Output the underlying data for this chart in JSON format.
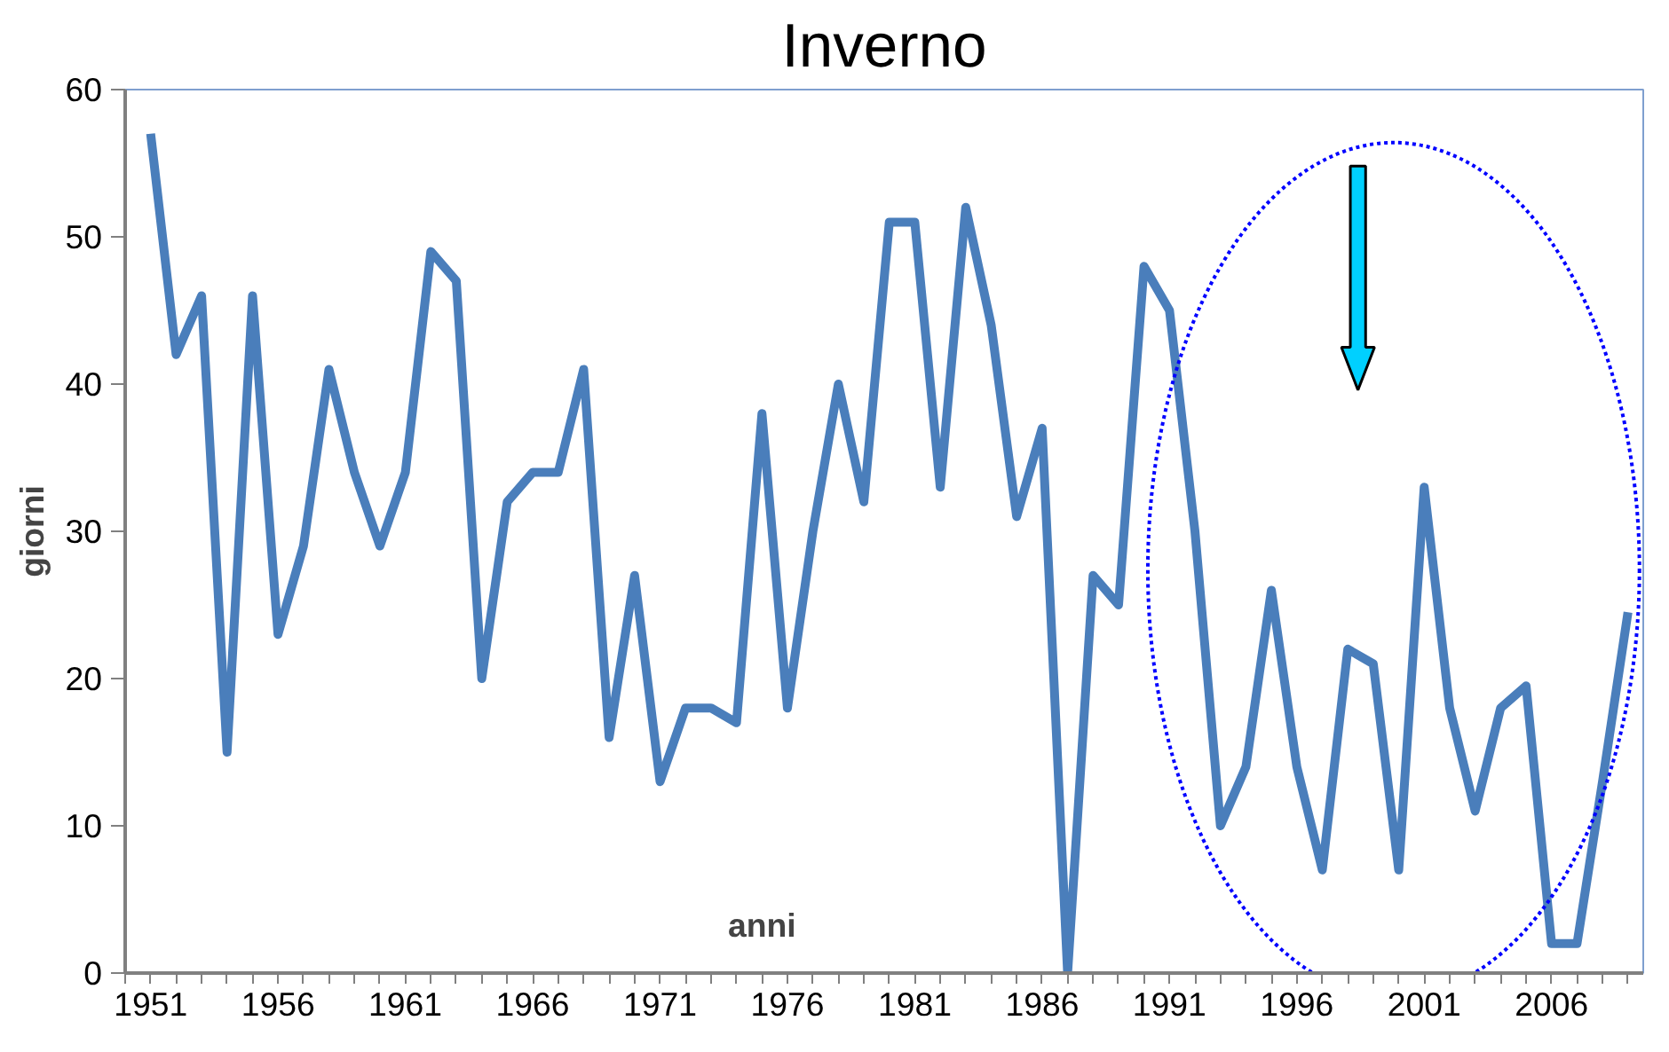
{
  "chart_data": {
    "type": "line",
    "title": "Inverno",
    "xlabel": "anni",
    "ylabel": "giorni",
    "x": [
      1951,
      1952,
      1953,
      1954,
      1955,
      1956,
      1957,
      1958,
      1959,
      1960,
      1961,
      1962,
      1963,
      1964,
      1965,
      1966,
      1967,
      1968,
      1969,
      1970,
      1971,
      1972,
      1973,
      1974,
      1975,
      1976,
      1977,
      1978,
      1979,
      1980,
      1981,
      1982,
      1983,
      1984,
      1985,
      1986,
      1987,
      1988,
      1989,
      1990,
      1991,
      1992,
      1993,
      1994,
      1995,
      1996,
      1997,
      1998,
      1999,
      2000,
      2001,
      2002,
      2003,
      2004,
      2005,
      2006,
      2007,
      2008,
      2009
    ],
    "series": [
      {
        "color": "#4a7ebb",
        "values": [
          57,
          42,
          46,
          15,
          46,
          23,
          29,
          41,
          34,
          29,
          34,
          49,
          47,
          20,
          32,
          34,
          34,
          41,
          16,
          27,
          13,
          18,
          18,
          17,
          38,
          18,
          30,
          40,
          32,
          51,
          51,
          33,
          52,
          44,
          31,
          37,
          0,
          27,
          25,
          48,
          45,
          30,
          10,
          14,
          26,
          14,
          7,
          22,
          21,
          7,
          33,
          18,
          11,
          18,
          19.5,
          2,
          2,
          13,
          24.5
        ]
      }
    ],
    "xlim": [
      1950,
      2009.6
    ],
    "xticks": [
      1951,
      1956,
      1961,
      1966,
      1971,
      1976,
      1981,
      1986,
      1991,
      1996,
      2001,
      2006
    ],
    "ylim": [
      0,
      60
    ],
    "yticks": [
      0,
      10,
      20,
      30,
      40,
      50,
      60
    ],
    "grid": false,
    "marker": "none",
    "line_style": "solid"
  }
}
